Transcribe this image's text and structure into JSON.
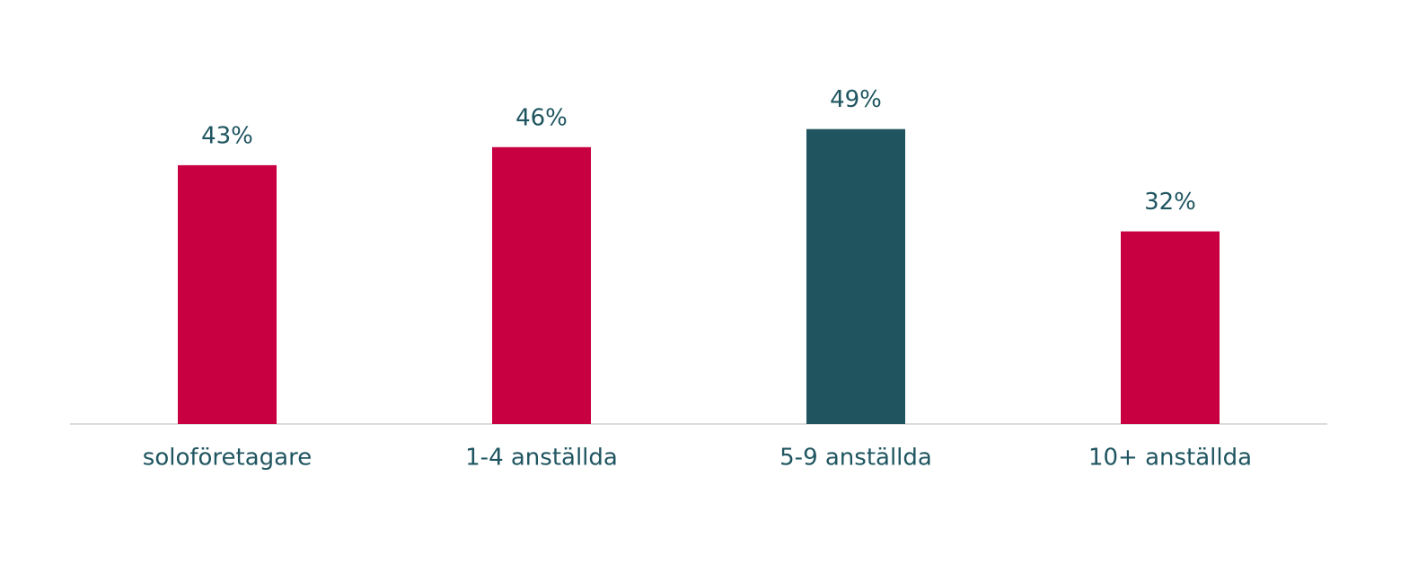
{
  "chart_data": {
    "type": "bar",
    "categories": [
      "soloföretagare",
      "1-4 anställda",
      "5-9 anställda",
      "10+ anställda"
    ],
    "values": [
      43,
      46,
      49,
      32
    ],
    "value_labels": [
      "43%",
      "46%",
      "49%",
      "32%"
    ],
    "colors": [
      "#c80042",
      "#c80042",
      "#20555f",
      "#c80042"
    ]
  }
}
